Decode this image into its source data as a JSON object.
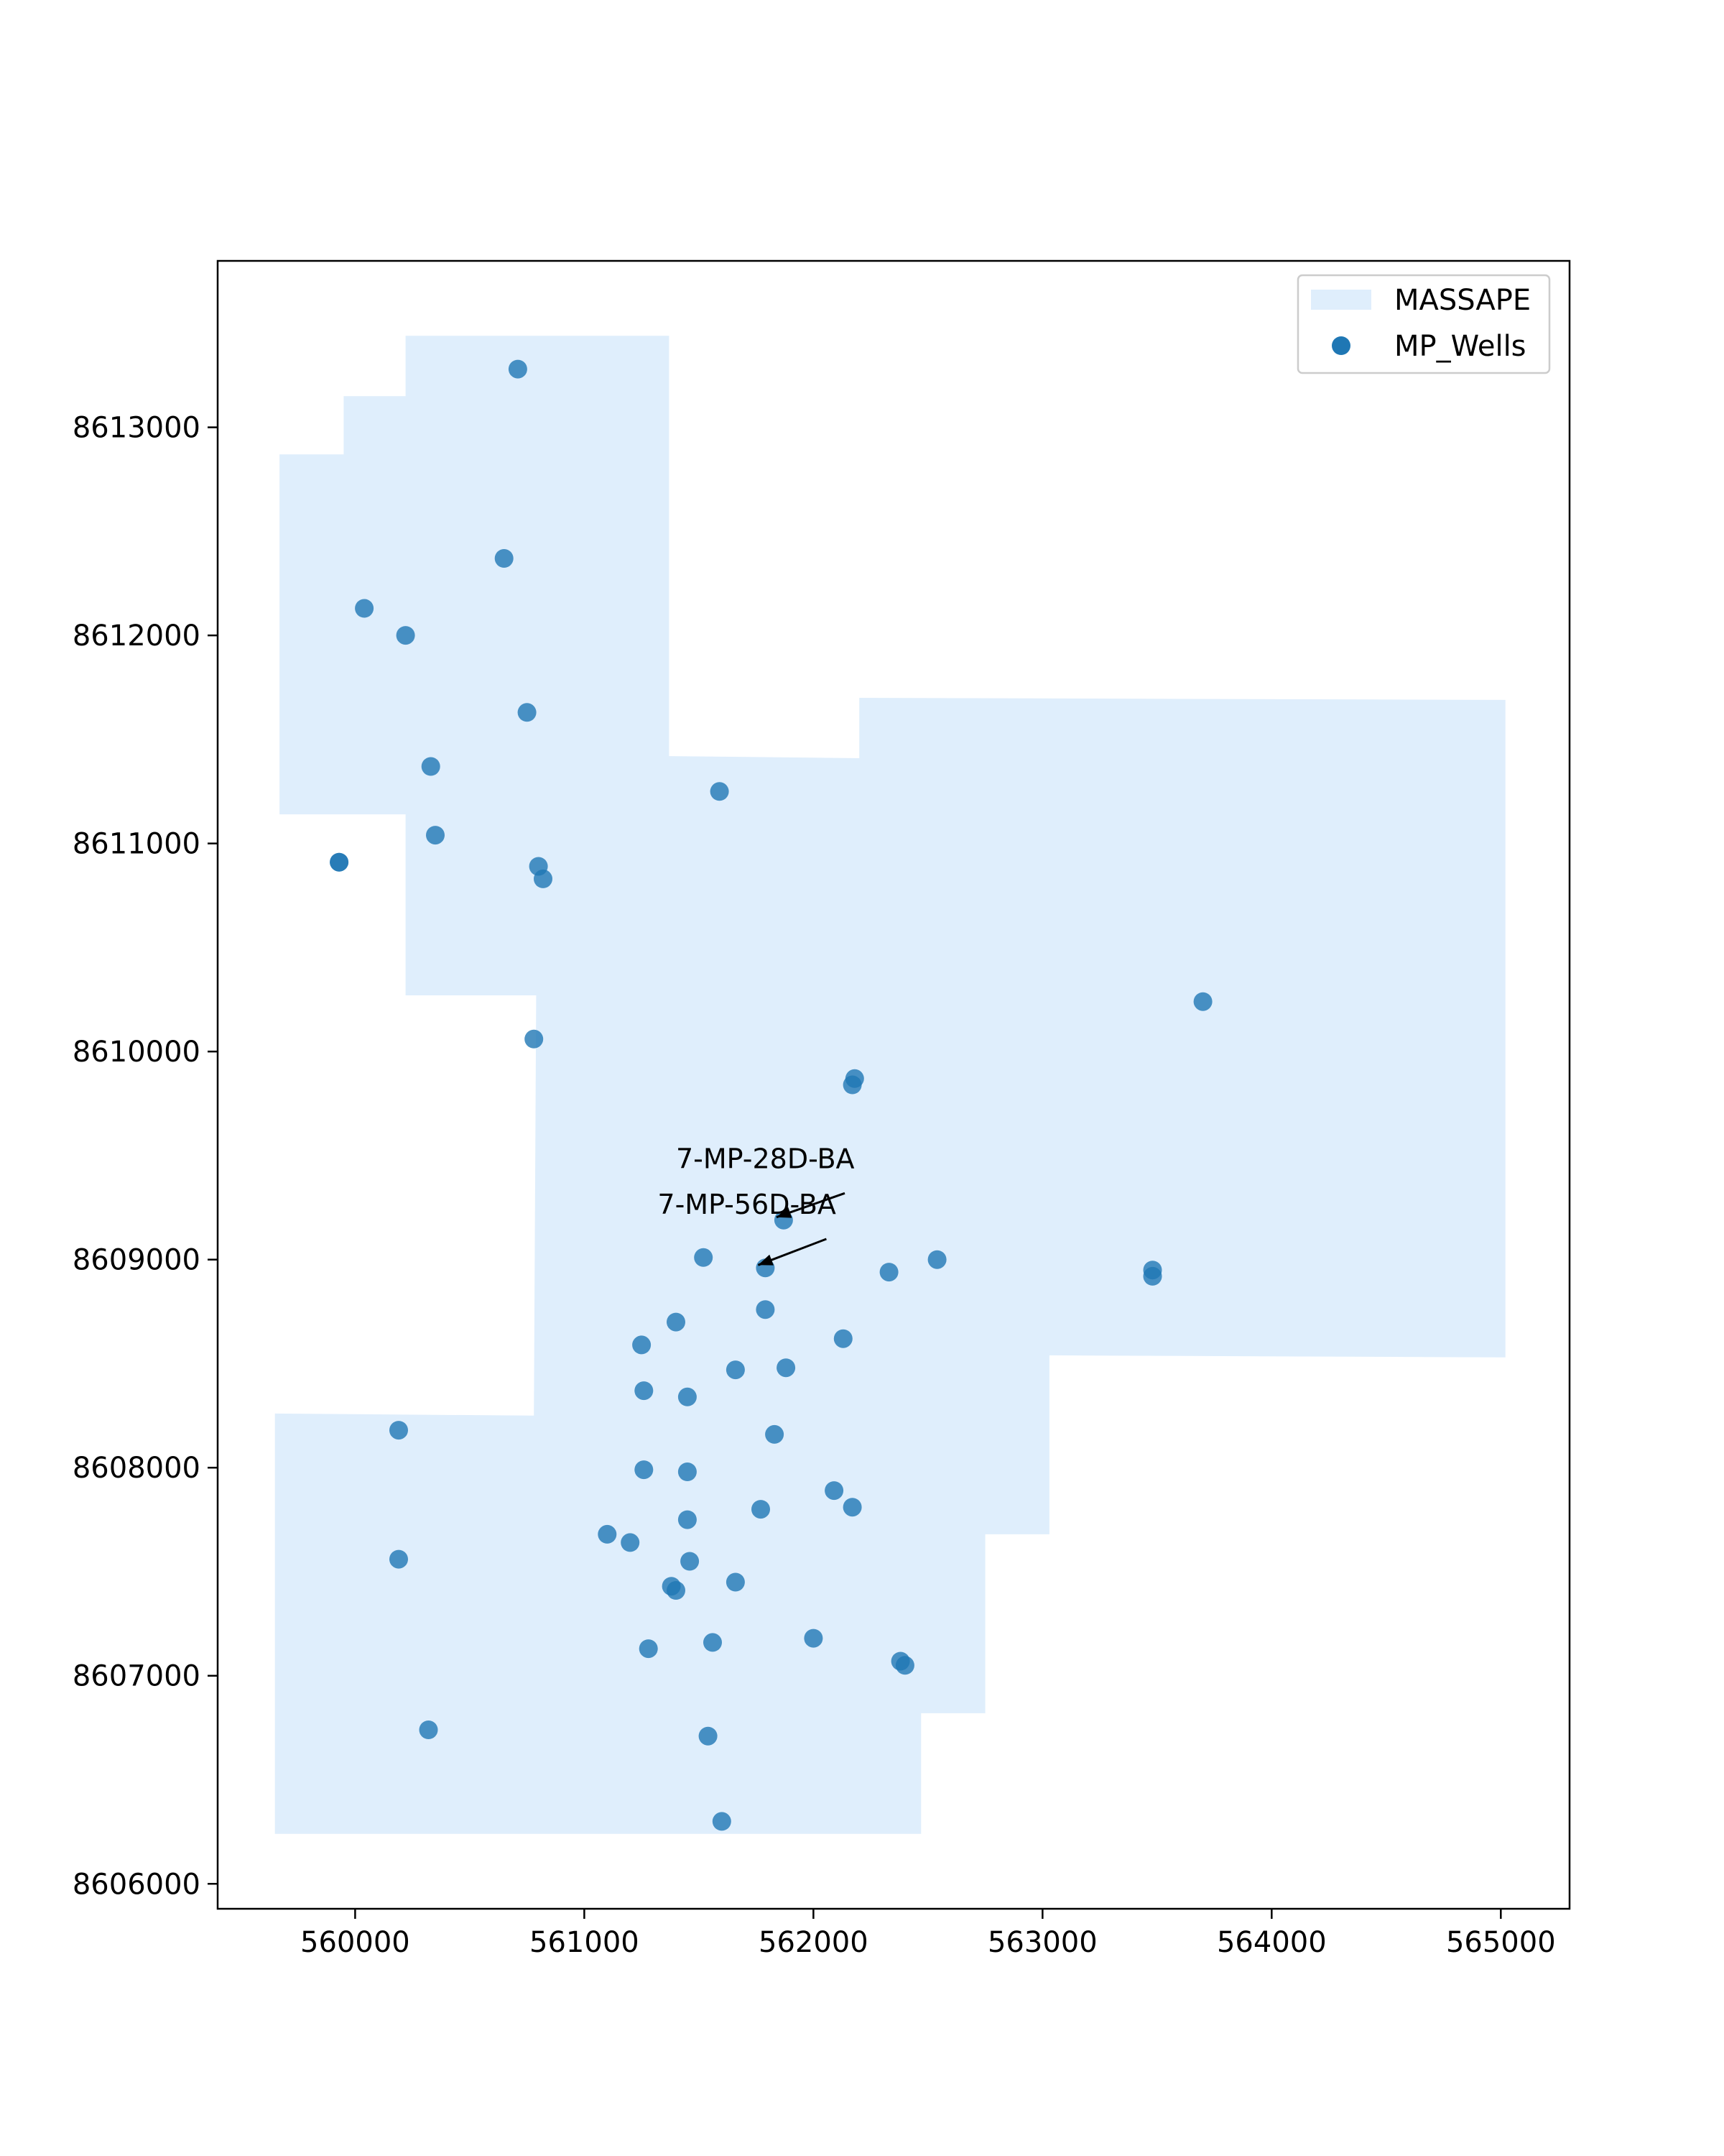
{
  "chart_data": {
    "type": "scatter",
    "title": "",
    "xlabel": "",
    "ylabel": "",
    "xlim": [
      559400,
      565300
    ],
    "ylim": [
      8605880,
      8613800
    ],
    "xticks": [
      560000,
      561000,
      562000,
      563000,
      564000,
      565000
    ],
    "yticks": [
      8606000,
      8607000,
      8608000,
      8609000,
      8610000,
      8611000,
      8612000,
      8613000
    ],
    "grid": false,
    "legend": {
      "placement": "top-right",
      "entries": [
        {
          "label": "MASSAPE",
          "kind": "patch",
          "color": "#dfeefc"
        },
        {
          "label": "MP_Wells",
          "kind": "marker",
          "color": "#1f77b4"
        }
      ]
    },
    "polygon": {
      "name": "MASSAPE",
      "color": "#dfeefc",
      "vertices": [
        [
          560220,
          8613440
        ],
        [
          561370,
          8613440
        ],
        [
          561370,
          8611420
        ],
        [
          562200,
          8611410
        ],
        [
          562200,
          8611700
        ],
        [
          565020,
          8611690
        ],
        [
          565020,
          8608530
        ],
        [
          563030,
          8608540
        ],
        [
          563030,
          8607680
        ],
        [
          562750,
          8607680
        ],
        [
          562750,
          8606820
        ],
        [
          562470,
          8606820
        ],
        [
          562470,
          8606240
        ],
        [
          559650,
          8606240
        ],
        [
          559650,
          8608260
        ],
        [
          560780,
          8608250
        ],
        [
          560790,
          8610270
        ],
        [
          560220,
          8610270
        ],
        [
          560220,
          8611140
        ],
        [
          559670,
          8611140
        ],
        [
          559670,
          8612870
        ],
        [
          559950,
          8612870
        ],
        [
          559950,
          8613150
        ],
        [
          560220,
          8613150
        ]
      ]
    },
    "series": [
      {
        "name": "MP_Wells",
        "color": "#1f77b4",
        "points": [
          [
            560710,
            8613280
          ],
          [
            560650,
            8612370
          ],
          [
            560040,
            8612130
          ],
          [
            560220,
            8612000
          ],
          [
            560750,
            8611630
          ],
          [
            560330,
            8611370
          ],
          [
            561590,
            8611250
          ],
          [
            560350,
            8611040
          ],
          [
            559930,
            8610910
          ],
          [
            559930,
            8610910
          ],
          [
            560800,
            8610890
          ],
          [
            560820,
            8610830
          ],
          [
            560780,
            8610060
          ],
          [
            563700,
            8610240
          ],
          [
            562180,
            8609870
          ],
          [
            562170,
            8609840
          ],
          [
            561870,
            8609190
          ],
          [
            561790,
            8608960
          ],
          [
            561520,
            8609010
          ],
          [
            562330,
            8608940
          ],
          [
            562540,
            8609000
          ],
          [
            563480,
            8608950
          ],
          [
            563480,
            8608920
          ],
          [
            561790,
            8608760
          ],
          [
            561400,
            8608700
          ],
          [
            561250,
            8608590
          ],
          [
            562130,
            8608620
          ],
          [
            561660,
            8608470
          ],
          [
            561880,
            8608480
          ],
          [
            561260,
            8608370
          ],
          [
            561450,
            8608340
          ],
          [
            561830,
            8608160
          ],
          [
            560190,
            8608180
          ],
          [
            561260,
            8607990
          ],
          [
            561450,
            8607980
          ],
          [
            562090,
            8607890
          ],
          [
            562170,
            8607810
          ],
          [
            561770,
            8607800
          ],
          [
            561450,
            8607750
          ],
          [
            561100,
            8607680
          ],
          [
            561200,
            8607640
          ],
          [
            560190,
            8607560
          ],
          [
            561460,
            8607550
          ],
          [
            561660,
            8607450
          ],
          [
            561380,
            8607430
          ],
          [
            561400,
            8607410
          ],
          [
            562000,
            8607180
          ],
          [
            561560,
            8607160
          ],
          [
            561280,
            8607130
          ],
          [
            562380,
            8607070
          ],
          [
            562400,
            8607050
          ],
          [
            560320,
            8606740
          ],
          [
            561540,
            8606710
          ],
          [
            561600,
            8606300
          ]
        ]
      }
    ],
    "annotations": [
      {
        "text": "7-MP-28D-BA",
        "point": [
          561870,
          8609190
        ],
        "text_at": [
          561400,
          8609440
        ]
      },
      {
        "text": "7-MP-56D-BA",
        "point": [
          561790,
          8608960
        ],
        "text_at": [
          561320,
          8609220
        ]
      }
    ]
  }
}
